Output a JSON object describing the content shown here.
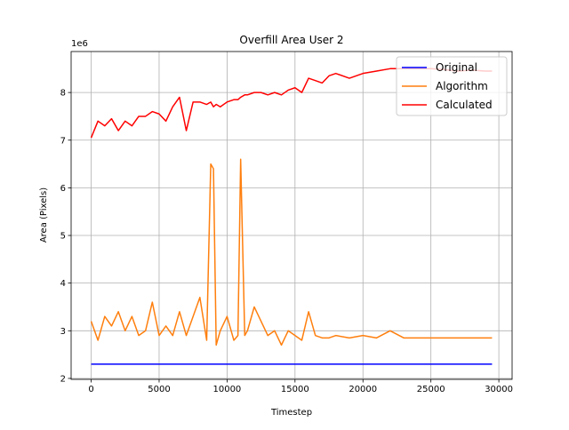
{
  "chart_data": {
    "type": "line",
    "title": "Overfill Area User 2",
    "x_label": "Timestep",
    "y_label": "Area (Pixels)",
    "y_offset_label": "1e6",
    "x": [
      0,
      500,
      1000,
      1500,
      2000,
      2500,
      3000,
      3500,
      4000,
      4500,
      5000,
      5500,
      6000,
      6500,
      7000,
      7500,
      8000,
      8500,
      8800,
      9000,
      9200,
      9500,
      10000,
      10500,
      10800,
      11000,
      11300,
      11500,
      12000,
      12500,
      13000,
      13500,
      14000,
      14500,
      15000,
      15500,
      16000,
      16500,
      17000,
      17500,
      18000,
      19000,
      20000,
      21000,
      22000,
      23000,
      24000,
      25000,
      26000,
      27000,
      28000,
      29000,
      29500
    ],
    "series": [
      {
        "name": "Original",
        "color": "#0000ff",
        "values": [
          2.3,
          2.3,
          2.3,
          2.3,
          2.3,
          2.3,
          2.3,
          2.3,
          2.3,
          2.3,
          2.3,
          2.3,
          2.3,
          2.3,
          2.3,
          2.3,
          2.3,
          2.3,
          2.3,
          2.3,
          2.3,
          2.3,
          2.3,
          2.3,
          2.3,
          2.3,
          2.3,
          2.3,
          2.3,
          2.3,
          2.3,
          2.3,
          2.3,
          2.3,
          2.3,
          2.3,
          2.3,
          2.3,
          2.3,
          2.3,
          2.3,
          2.3,
          2.3,
          2.3,
          2.3,
          2.3,
          2.3,
          2.3,
          2.3,
          2.3,
          2.3,
          2.3,
          2.3
        ]
      },
      {
        "name": "Algorithm",
        "color": "#ff7f0e",
        "values": [
          3.2,
          2.8,
          3.3,
          3.1,
          3.4,
          3.0,
          3.3,
          2.9,
          3.0,
          3.6,
          2.9,
          3.1,
          2.9,
          3.4,
          2.9,
          3.3,
          3.7,
          2.8,
          6.5,
          6.4,
          2.7,
          3.0,
          3.3,
          2.8,
          2.9,
          6.6,
          2.9,
          3.0,
          3.5,
          3.2,
          2.9,
          3.0,
          2.7,
          3.0,
          2.9,
          2.8,
          3.4,
          2.9,
          2.85,
          2.85,
          2.9,
          2.85,
          2.9,
          2.85,
          3.0,
          2.85,
          2.85,
          2.85,
          2.85,
          2.85,
          2.85,
          2.85,
          2.85
        ]
      },
      {
        "name": "Calculated",
        "color": "#ff0000",
        "values": [
          7.05,
          7.4,
          7.3,
          7.45,
          7.2,
          7.4,
          7.3,
          7.5,
          7.5,
          7.6,
          7.55,
          7.4,
          7.7,
          7.9,
          7.2,
          7.8,
          7.8,
          7.75,
          7.8,
          7.7,
          7.75,
          7.7,
          7.8,
          7.85,
          7.85,
          7.9,
          7.95,
          7.95,
          8.0,
          8.0,
          7.95,
          8.0,
          7.95,
          8.05,
          8.1,
          8.0,
          8.3,
          8.25,
          8.2,
          8.35,
          8.4,
          8.3,
          8.4,
          8.45,
          8.5,
          8.5,
          8.5,
          8.5,
          8.48,
          8.45,
          8.47,
          8.45,
          8.45
        ]
      }
    ],
    "xlim": [
      -1475,
      30975
    ],
    "ylim": [
      1.98,
      8.86
    ],
    "xticks": [
      0,
      5000,
      10000,
      15000,
      20000,
      25000,
      30000
    ],
    "yticks": [
      2,
      3,
      4,
      5,
      6,
      7,
      8
    ],
    "grid": true,
    "legend": "upper right"
  }
}
